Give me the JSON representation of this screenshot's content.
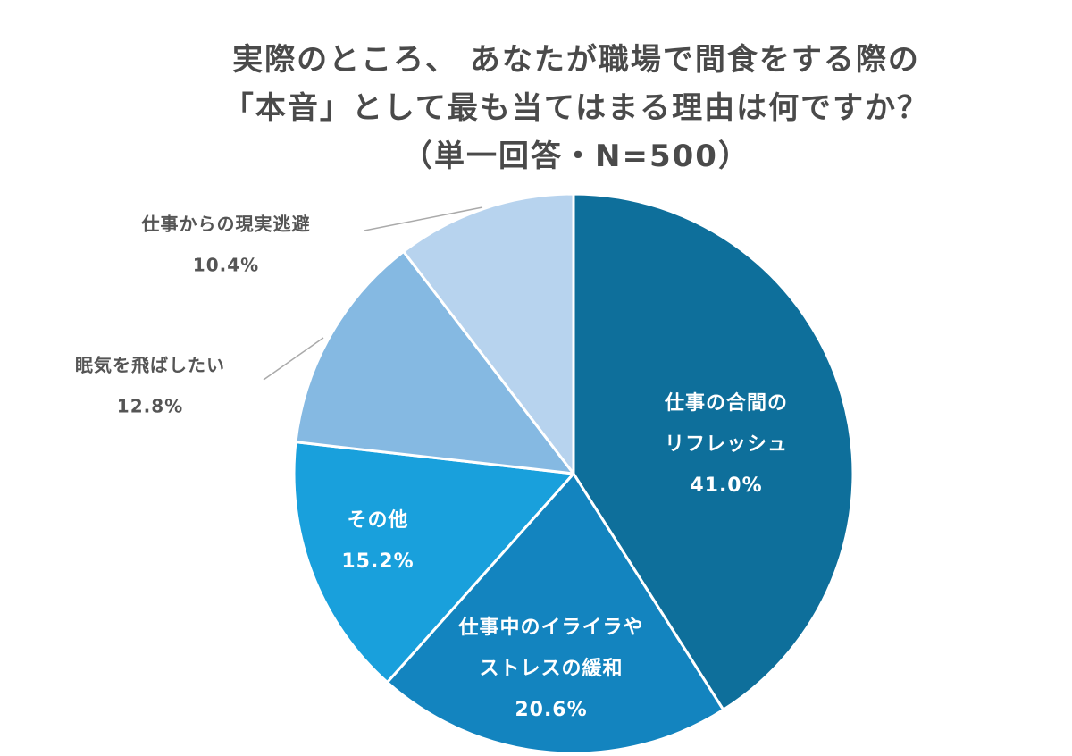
{
  "chart_data": {
    "type": "pie",
    "title_lines": [
      "実際のところ、 あなたが職場で間食をする際の",
      "「本音」として最も当てはまる理由は何ですか？",
      "（単一回答・N=500）"
    ],
    "slices": [
      {
        "label_lines": [
          "仕事の合間の",
          "リフレッシュ"
        ],
        "value": 41.0,
        "value_label": "41.0%",
        "color": "#0e6f9b"
      },
      {
        "label_lines": [
          "仕事中のイライラや",
          "ストレスの緩和"
        ],
        "value": 20.6,
        "value_label": "20.6%",
        "color": "#1384bf"
      },
      {
        "label_lines": [
          "その他"
        ],
        "value": 15.2,
        "value_label": "15.2%",
        "color": "#19a0dc"
      },
      {
        "label_lines": [
          "眠気を飛ばしたい"
        ],
        "value": 12.8,
        "value_label": "12.8%",
        "color": "#85b9e2"
      },
      {
        "label_lines": [
          "仕事からの現実逃避"
        ],
        "value": 10.4,
        "value_label": "10.4%",
        "color": "#b7d3ee"
      }
    ]
  }
}
